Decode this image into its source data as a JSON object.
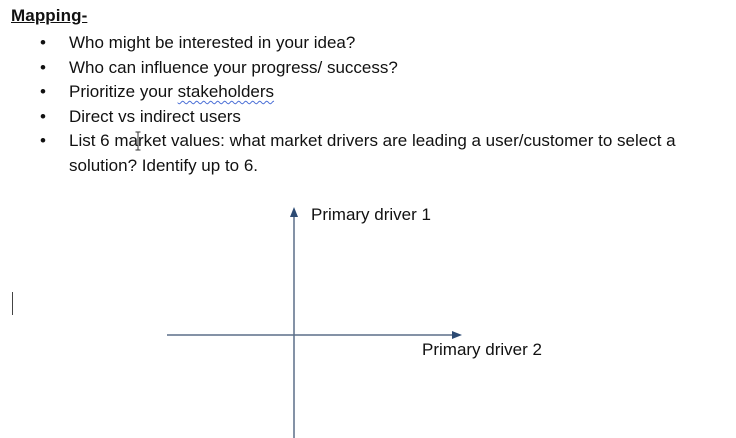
{
  "document": {
    "heading": "Mapping-",
    "bullets": [
      {
        "text": "Who might be interested in your idea?"
      },
      {
        "prefix": "Prioritize your ",
        "flagged": "stakeholders"
      },
      {
        "text": "Who can influence your progress/ success?"
      },
      {
        "text": "Direct vs indirect users"
      },
      {
        "text": "List 6 market values: what market drivers are leading a user/customer to select a solution?  Identify up to 6."
      }
    ]
  },
  "diagram": {
    "vertical_axis_label": "Primary driver 1",
    "horizontal_axis_label": "Primary driver 2",
    "axis_color": "#5b6f88"
  }
}
